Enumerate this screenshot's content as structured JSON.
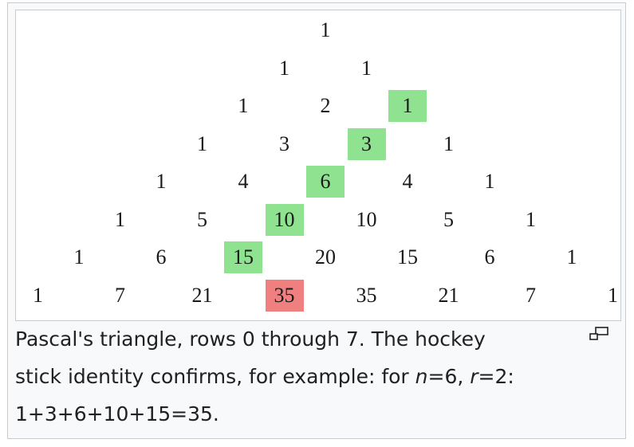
{
  "triangle": {
    "rows": [
      [
        "1"
      ],
      [
        "1",
        "1"
      ],
      [
        "1",
        "2",
        "1"
      ],
      [
        "1",
        "3",
        "3",
        "1"
      ],
      [
        "1",
        "4",
        "6",
        "4",
        "1"
      ],
      [
        "1",
        "5",
        "10",
        "10",
        "5",
        "1"
      ],
      [
        "1",
        "6",
        "15",
        "20",
        "15",
        "6",
        "1"
      ],
      [
        "1",
        "7",
        "21",
        "35",
        "35",
        "21",
        "7",
        "1"
      ]
    ],
    "highlight_green": [
      [
        2,
        2
      ],
      [
        3,
        2
      ],
      [
        4,
        2
      ],
      [
        5,
        2
      ],
      [
        6,
        2
      ]
    ],
    "highlight_red": [
      [
        7,
        3
      ]
    ],
    "colors": {
      "green": "#8fe28f",
      "red": "#f08080"
    }
  },
  "caption": {
    "line1": "Pascal's triangle, rows 0 through 7. The hockey",
    "line2_prefix": "stick identity confirms, for example: for ",
    "n_var": "n",
    "n_eq": "=6, ",
    "r_var": "r",
    "r_eq": "=2:",
    "line3": "1+3+6+10+15=35."
  },
  "enlarge_icon": "magnify-clip-icon"
}
